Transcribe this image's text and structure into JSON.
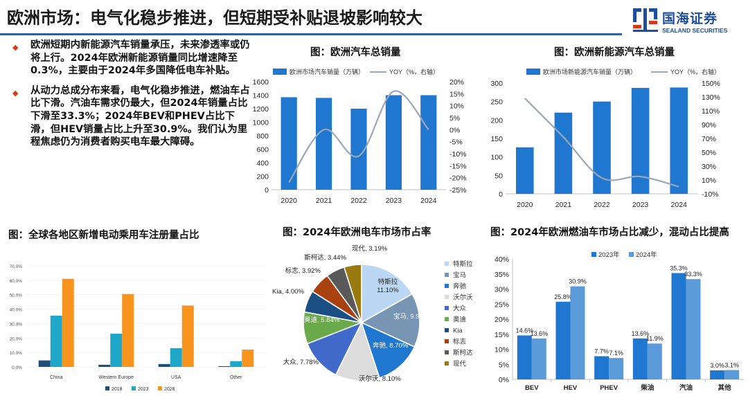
{
  "header": {
    "title": "欧洲市场：电气化稳步推进，但短期受补贴退坡影响较大",
    "logo_cn": "国海证券",
    "logo_en": "SEALAND SECURITIES"
  },
  "bullets": [
    "欧洲短期内新能源汽车销量承压，未来渗透率或仍将上行。2024年欧洲新能源销量同比增速降至0.3%，主要由于2024年多国降低电车补贴。",
    "从动力总成分布来看，电气化稳步推进，燃油车占比下滑。汽油车需求仍最大，但2024年销量占比下滑至33.3%；2024年BEV和PHEV占比下滑，但HEV销量占比上升至30.9%。我们认为里程焦虑仍为消费者购买电车最大障碍。"
  ],
  "colors": {
    "bar_blue": "#1f77d0",
    "line_gray": "#9aa7b8",
    "accent_red": "#d9381e",
    "brand_blue": "#1f4e9c"
  },
  "chart_data": [
    {
      "id": "europe_total",
      "type": "bar",
      "title": "图：欧洲汽车总销量",
      "categories": [
        "2020",
        "2021",
        "2022",
        "2023",
        "2024"
      ],
      "series": [
        {
          "name": "欧洲市场汽车销量（万辆）",
          "type": "bar",
          "axis": "left",
          "values": [
            1370,
            1360,
            1200,
            1400,
            1400
          ]
        },
        {
          "name": "YOY（%，右轴）",
          "type": "line",
          "axis": "right",
          "values": [
            -22,
            0,
            -11,
            16,
            0
          ]
        }
      ],
      "ylim_left": [
        0,
        1600
      ],
      "yticks_left": [
        "0",
        "200",
        "400",
        "600",
        "800",
        "1000",
        "1200",
        "1400",
        "1600"
      ],
      "ylim_right": [
        -25,
        20
      ],
      "yticks_right": [
        "-25%",
        "-20%",
        "-15%",
        "-10%",
        "-5%",
        "0%",
        "5%",
        "10%",
        "15%",
        "20%"
      ],
      "legend": "top"
    },
    {
      "id": "europe_nev",
      "type": "bar",
      "title": "图：欧洲新能源汽车总销量",
      "categories": [
        "2020",
        "2021",
        "2022",
        "2023",
        "2024"
      ],
      "series": [
        {
          "name": "欧洲市场新能源汽车销量（万辆）",
          "type": "bar",
          "axis": "left",
          "values": [
            126,
            220,
            250,
            287,
            288
          ]
        },
        {
          "name": "YOY（%，右轴）",
          "type": "line",
          "axis": "right",
          "values": [
            128,
            72,
            13,
            15,
            0.3
          ]
        }
      ],
      "ylim_left": [
        0,
        300
      ],
      "yticks_left": [
        "0",
        "50",
        "100",
        "150",
        "200",
        "250",
        "300"
      ],
      "ylim_right": [
        -10,
        150
      ],
      "yticks_right": [
        "-10%",
        "10%",
        "30%",
        "50%",
        "70%",
        "90%",
        "110%",
        "130%",
        "150%"
      ],
      "legend": "top"
    },
    {
      "id": "global_regions",
      "type": "bar",
      "title": "图：全球各地区新增电动乘用车注册量占比",
      "categories": [
        "China",
        "Western Europe",
        "USA",
        "Other"
      ],
      "series": [
        {
          "name": "2018",
          "color": "#1c4f7a",
          "values": [
            4.5,
            1.5,
            2.0,
            0.5
          ]
        },
        {
          "name": "2023",
          "color": "#1fa7c9",
          "values": [
            35.5,
            23.0,
            13.0,
            4.0
          ]
        },
        {
          "name": "2028",
          "color": "#f7941d",
          "values": [
            61.0,
            50.5,
            42.5,
            12.0
          ]
        }
      ],
      "ylim": [
        0,
        70
      ],
      "yticks": [
        "0.0%",
        "10.0%",
        "20.0%",
        "30.0%",
        "40.0%",
        "50.0%",
        "60.0%",
        "70.0%"
      ],
      "legend": "bottom"
    },
    {
      "id": "pie_brands",
      "type": "pie",
      "title": "图：2024年欧洲电车市场市占率",
      "slices": [
        {
          "name": "特斯拉",
          "label": "特斯拉, 11.10%",
          "value": 11.1,
          "color": "#bcd7f3"
        },
        {
          "name": "宝马",
          "label": "宝马, 9.90%",
          "value": 9.9,
          "color": "#7895b4"
        },
        {
          "name": "奔驰",
          "label": "奔驰, 8.70%",
          "value": 8.7,
          "color": "#1f77d0"
        },
        {
          "name": "沃尔沃",
          "label": "沃尔沃, 8.10%",
          "value": 8.1,
          "color": "#dcdcdc"
        },
        {
          "name": "大众",
          "label": "大众, 7.78%",
          "value": 7.78,
          "color": "#4169c9"
        },
        {
          "name": "奥迪",
          "label": "奥迪, 5.84%",
          "value": 5.84,
          "color": "#6aaa4a"
        },
        {
          "name": "Kia",
          "label": "Kia, 4.00%",
          "value": 4.0,
          "color": "#1b4e83"
        },
        {
          "name": "标志",
          "label": "标志, 3.92%",
          "value": 3.92,
          "color": "#a9410f"
        },
        {
          "name": "斯柯达",
          "label": "斯柯达, 3.44%",
          "value": 3.44,
          "color": "#595959"
        },
        {
          "name": "现代",
          "label": "现代, 3.19%",
          "value": 3.19,
          "color": "#9a7a10"
        }
      ],
      "legend": "right"
    },
    {
      "id": "powertrain",
      "type": "bar",
      "title": "图：2024年欧洲燃油车市场占比减少，混动占比提高",
      "categories": [
        "BEV",
        "HEV",
        "PHEV",
        "柴油",
        "汽油",
        "其他"
      ],
      "series": [
        {
          "name": "2023年",
          "color": "#1f77d0",
          "values": [
            14.6,
            25.8,
            7.7,
            13.6,
            35.3,
            3.0
          ],
          "labels": [
            "14.6%",
            "25.8%",
            "7.7%",
            "13.6%",
            "35.3%",
            "3.0%"
          ]
        },
        {
          "name": "2024年",
          "color": "#5b9bd9",
          "values": [
            13.6,
            30.9,
            7.1,
            11.9,
            33.3,
            3.1
          ],
          "labels": [
            "13.6%",
            "30.9%",
            "7.1%",
            "11.9%",
            "33.3%",
            "3.1%"
          ]
        }
      ],
      "ylim": [
        0,
        40
      ],
      "yticks": [
        "0%",
        "5%",
        "10%",
        "15%",
        "20%",
        "25%",
        "30%",
        "35%",
        "40%"
      ],
      "legend": "top"
    }
  ]
}
